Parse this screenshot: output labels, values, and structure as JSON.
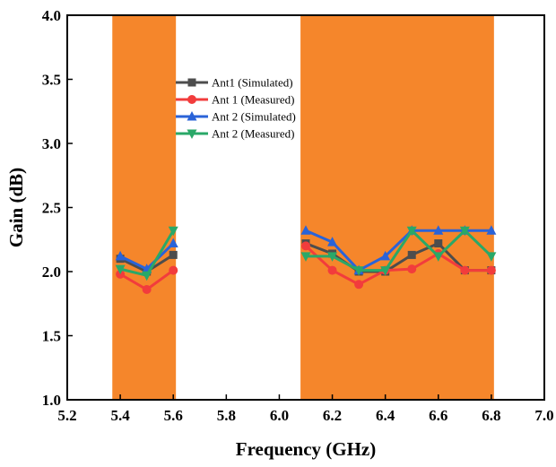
{
  "chart_data": {
    "type": "line",
    "title": "",
    "xlabel": "Frequency (GHz)",
    "ylabel": "Gain (dB)",
    "xlim": [
      5.2,
      7.0
    ],
    "ylim": [
      1.0,
      4.0
    ],
    "x_ticks": [
      "5.2",
      "5.4",
      "5.6",
      "5.8",
      "6.0",
      "6.2",
      "6.4",
      "6.6",
      "6.8",
      "7.0"
    ],
    "y_ticks": [
      "1.0",
      "1.5",
      "2.0",
      "2.5",
      "3.0",
      "3.5",
      "4.0"
    ],
    "grid": false,
    "legend_position": "upper-left",
    "highlight_color": "#f5862b",
    "bands": [
      {
        "from": 5.37,
        "to": 5.61
      },
      {
        "from": 6.08,
        "to": 6.81
      }
    ],
    "series": [
      {
        "name": "Ant1 (Simulated)",
        "color": "#4d4d4d",
        "marker": "square",
        "segments": [
          {
            "x": [
              5.4,
              5.5,
              5.6
            ],
            "y": [
              2.1,
              2.0,
              2.13
            ]
          },
          {
            "x": [
              6.1,
              6.2,
              6.3,
              6.4,
              6.5,
              6.6,
              6.7,
              6.8
            ],
            "y": [
              2.22,
              2.14,
              2.0,
              2.0,
              2.13,
              2.22,
              2.01,
              2.01
            ]
          }
        ]
      },
      {
        "name": "Ant 1 (Measured)",
        "color": "#f23c3c",
        "marker": "circle",
        "segments": [
          {
            "x": [
              5.4,
              5.5,
              5.6
            ],
            "y": [
              1.98,
              1.86,
              2.01
            ]
          },
          {
            "x": [
              6.1,
              6.2,
              6.3,
              6.4,
              6.5,
              6.6,
              6.7,
              6.8
            ],
            "y": [
              2.2,
              2.01,
              1.9,
              2.01,
              2.02,
              2.14,
              2.01,
              2.01
            ]
          }
        ]
      },
      {
        "name": "Ant 2 (Simulated)",
        "color": "#2a63d8",
        "marker": "triangle-up",
        "segments": [
          {
            "x": [
              5.4,
              5.5,
              5.6
            ],
            "y": [
              2.12,
              2.02,
              2.22
            ]
          },
          {
            "x": [
              6.1,
              6.2,
              6.3,
              6.4,
              6.5,
              6.6,
              6.7,
              6.8
            ],
            "y": [
              2.32,
              2.23,
              2.01,
              2.12,
              2.32,
              2.32,
              2.32,
              2.32
            ]
          }
        ]
      },
      {
        "name": "Ant 2 (Measured)",
        "color": "#2aa868",
        "marker": "triangle-down",
        "segments": [
          {
            "x": [
              5.4,
              5.5,
              5.6
            ],
            "y": [
              2.02,
              1.97,
              2.32
            ]
          },
          {
            "x": [
              6.1,
              6.2,
              6.3,
              6.4,
              6.5,
              6.6,
              6.7,
              6.8
            ],
            "y": [
              2.12,
              2.12,
              2.01,
              2.01,
              2.32,
              2.12,
              2.32,
              2.12
            ]
          }
        ]
      }
    ]
  }
}
